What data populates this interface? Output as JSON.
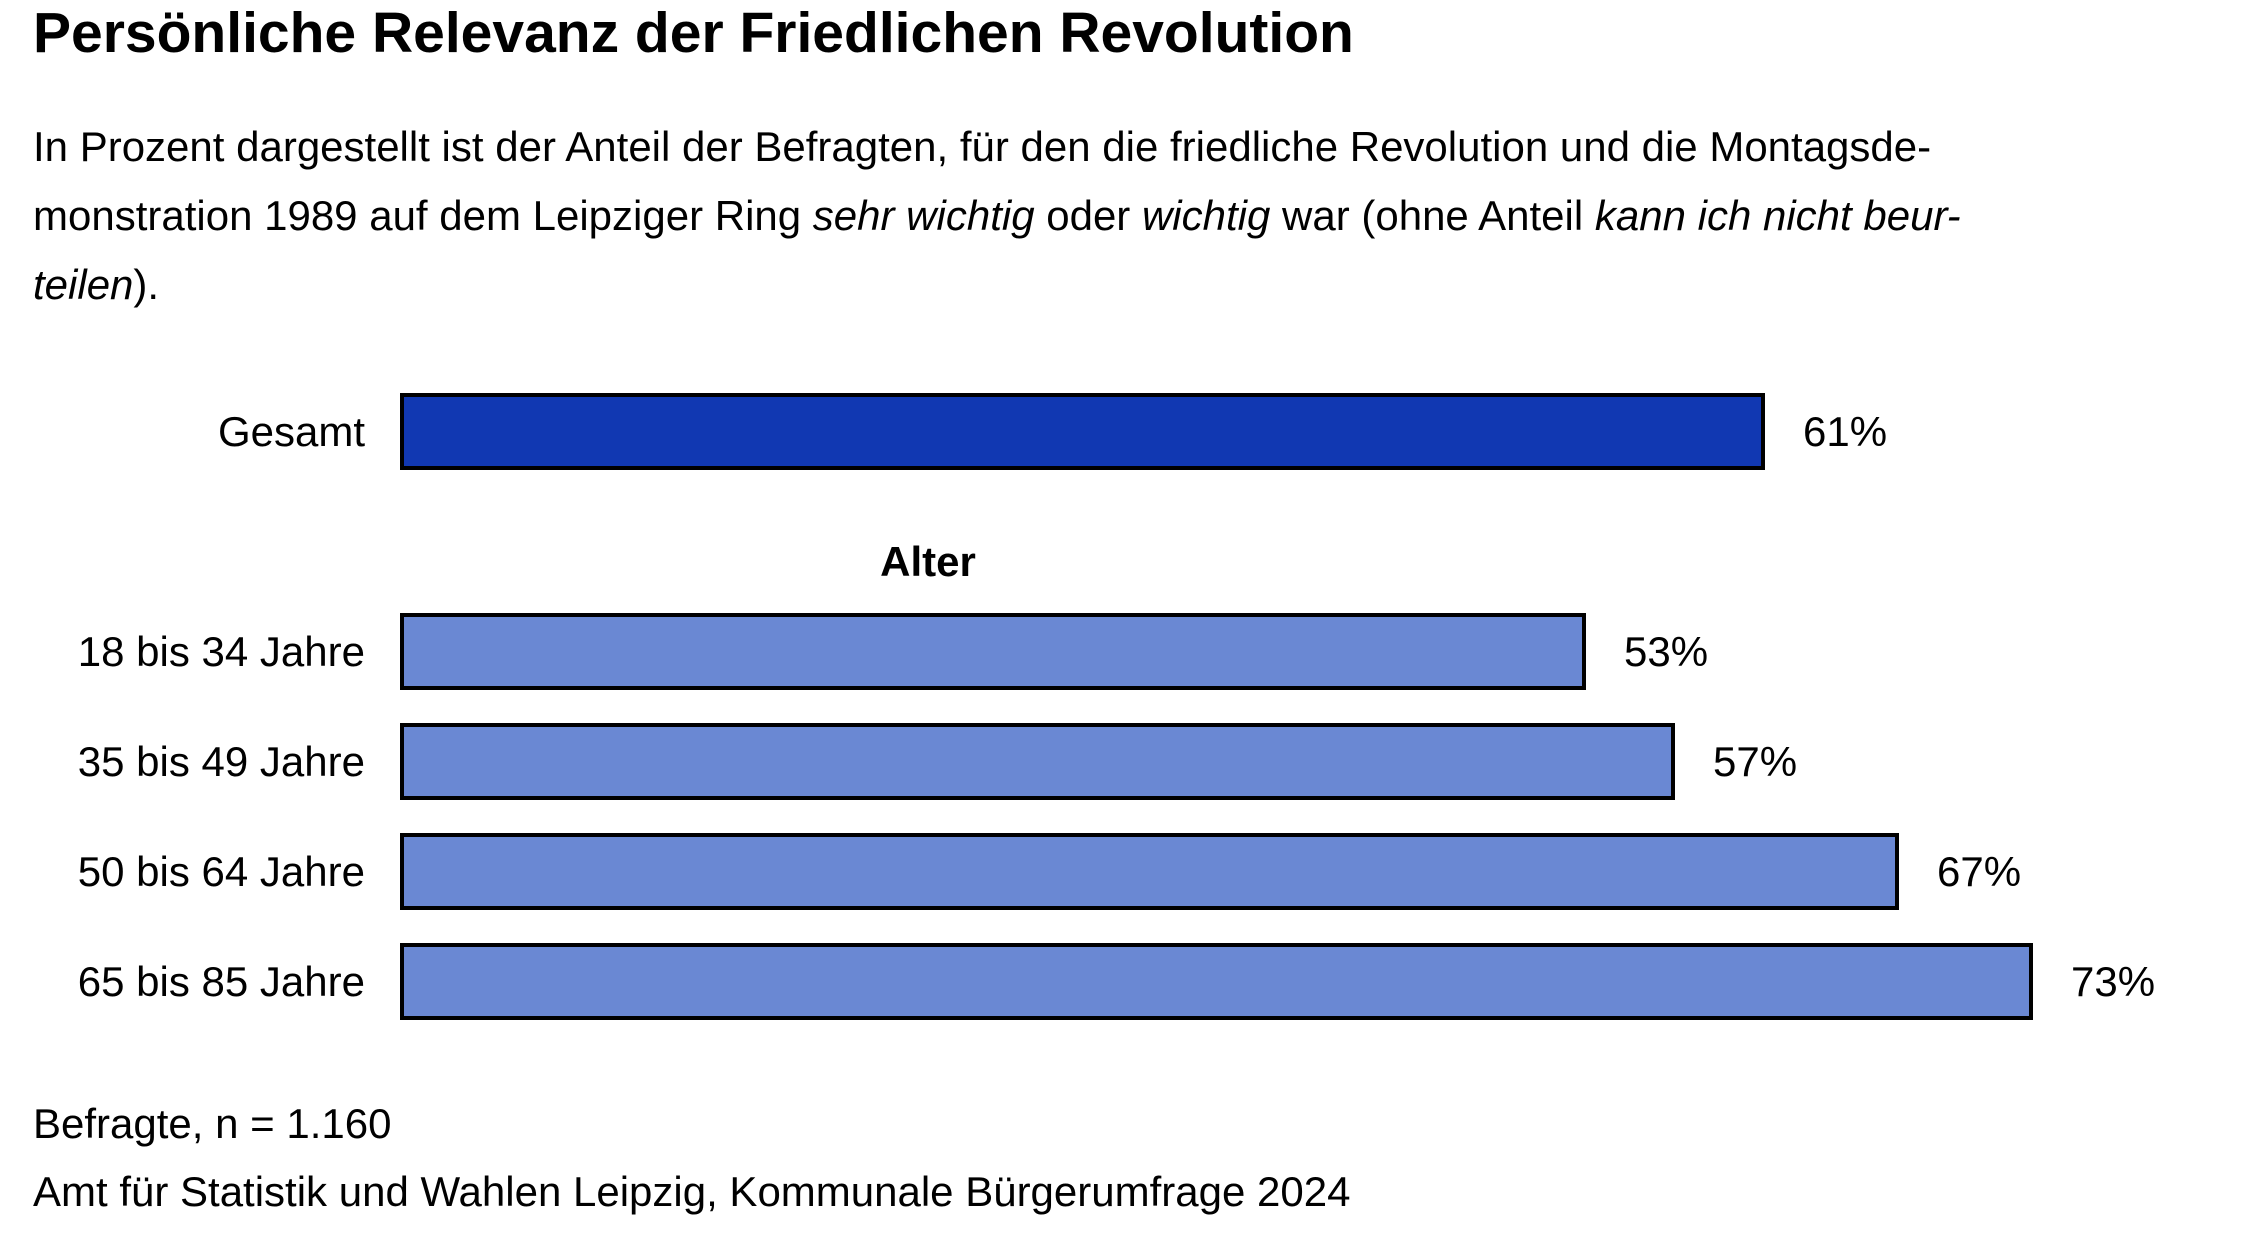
{
  "title": "Persönliche Relevanz der Friedlichen Revolution",
  "description_lines": [
    [
      {
        "text": "In Prozent dargestellt ist der Anteil der Befragten, für den die friedliche Revolution und die Montagsde-",
        "italic": false
      }
    ],
    [
      {
        "text": "monstration 1989 auf dem Leipziger Ring ",
        "italic": false
      },
      {
        "text": "sehr wichtig",
        "italic": true
      },
      {
        "text": " oder ",
        "italic": false
      },
      {
        "text": "wichtig",
        "italic": true
      },
      {
        "text": " war (ohne Anteil ",
        "italic": false
      },
      {
        "text": "kann ich nicht beur-",
        "italic": true
      }
    ],
    [
      {
        "text": "teilen",
        "italic": true
      },
      {
        "text": ").",
        "italic": false
      }
    ]
  ],
  "chart_data": {
    "type": "bar",
    "orientation": "horizontal",
    "unit": "percent",
    "xlim": [
      0,
      100
    ],
    "grid": false,
    "legend": "none",
    "group_heading": "Alter",
    "series": [
      {
        "category": "Gesamt",
        "value": 61,
        "value_label": "61%",
        "group": "total"
      },
      {
        "category": "18 bis 34 Jahre",
        "value": 53,
        "value_label": "53%",
        "group": "Alter"
      },
      {
        "category": "35 bis 49 Jahre",
        "value": 57,
        "value_label": "57%",
        "group": "Alter"
      },
      {
        "category": "50 bis 64 Jahre",
        "value": 67,
        "value_label": "67%",
        "group": "Alter"
      },
      {
        "category": "65 bis 85 Jahre",
        "value": 73,
        "value_label": "73%",
        "group": "Alter"
      }
    ]
  },
  "colors": {
    "total_bar": "#1138B2",
    "group_bar": "#6A88D3",
    "bar_border": "#000000",
    "text": "#000000"
  },
  "footnotes": {
    "respondents": "Befragte, n = 1.160",
    "source": "Amt für Statistik und Wahlen Leipzig, Kommunale Bürgerumfrage 2024"
  }
}
